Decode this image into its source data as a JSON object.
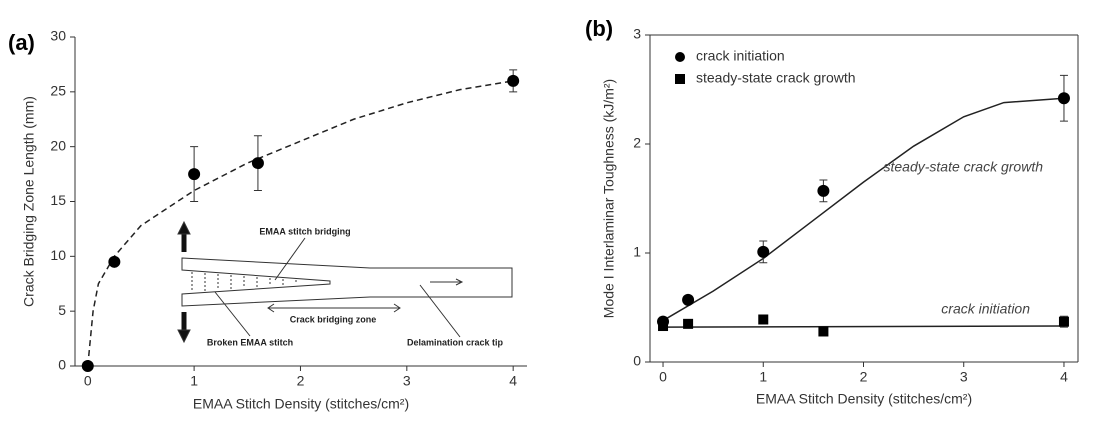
{
  "chart_data": [
    {
      "type": "scatter",
      "panel_label": "(a)",
      "xlabel": "EMAA Stitch Density (stitches/cm²)",
      "ylabel": "Crack Bridging Zone Length (mm)",
      "xlim": [
        -0.12,
        4.13
      ],
      "ylim": [
        0,
        30
      ],
      "xticks": [
        0,
        1,
        2,
        3,
        4
      ],
      "yticks": [
        0,
        5,
        10,
        15,
        20,
        25,
        30
      ],
      "box": false,
      "series": [
        {
          "marker": "circle",
          "color": "#000000",
          "x": [
            0,
            0.25,
            1,
            1.6,
            4
          ],
          "values": [
            0,
            9.5,
            17.5,
            18.5,
            26
          ],
          "errors": [
            null,
            null,
            2.5,
            2.5,
            1
          ]
        }
      ],
      "fits": [
        {
          "style": "dashed",
          "x": [
            0,
            0.05,
            0.1,
            0.25,
            0.5,
            1,
            1.5,
            2,
            2.5,
            3,
            3.5,
            4
          ],
          "values": [
            0,
            5,
            7.5,
            10,
            12.8,
            16,
            18.5,
            20.5,
            22.5,
            24,
            25.2,
            26
          ]
        }
      ],
      "inset": {
        "labels": [
          "EMAA stitch bridging",
          "Crack bridging zone",
          "Broken EMAA stitch",
          "Delamination crack tip"
        ]
      }
    },
    {
      "type": "scatter",
      "panel_label": "(b)",
      "xlabel": "EMAA Stitch Density (stitches/cm²)",
      "ylabel": "Mode I Interlaminar Toughness (kJ/m²)",
      "xlim": [
        -0.13,
        4.14
      ],
      "ylim": [
        0,
        3
      ],
      "xticks": [
        0,
        1,
        2,
        3,
        4
      ],
      "yticks": [
        0,
        1,
        2,
        3
      ],
      "box": true,
      "legend": "upper left",
      "series": [
        {
          "name": "crack initiation",
          "marker": "circle",
          "color": "#000000",
          "x": [
            0,
            0.25,
            1,
            1.6,
            4
          ],
          "values": [
            0.37,
            0.57,
            1.01,
            1.57,
            2.42
          ],
          "errors": [
            null,
            null,
            0.1,
            0.1,
            0.21
          ]
        },
        {
          "name": "steady-state crack growth",
          "marker": "square",
          "color": "#000000",
          "x": [
            0,
            0.25,
            1,
            1.6,
            4
          ],
          "values": [
            0.33,
            0.35,
            0.39,
            0.28,
            0.37
          ],
          "errors": [
            null,
            null,
            null,
            null,
            0.05
          ]
        }
      ],
      "fits": [
        {
          "style": "solid",
          "x": [
            0,
            0.5,
            1,
            1.5,
            2,
            2.5,
            3,
            3.4,
            4
          ],
          "values": [
            0.38,
            0.65,
            0.95,
            1.3,
            1.65,
            1.98,
            2.25,
            2.38,
            2.42
          ]
        },
        {
          "style": "solid",
          "x": [
            0,
            4
          ],
          "values": [
            0.32,
            0.33
          ]
        }
      ],
      "annotations": [
        "steady-state crack growth",
        "crack initiation"
      ]
    }
  ]
}
